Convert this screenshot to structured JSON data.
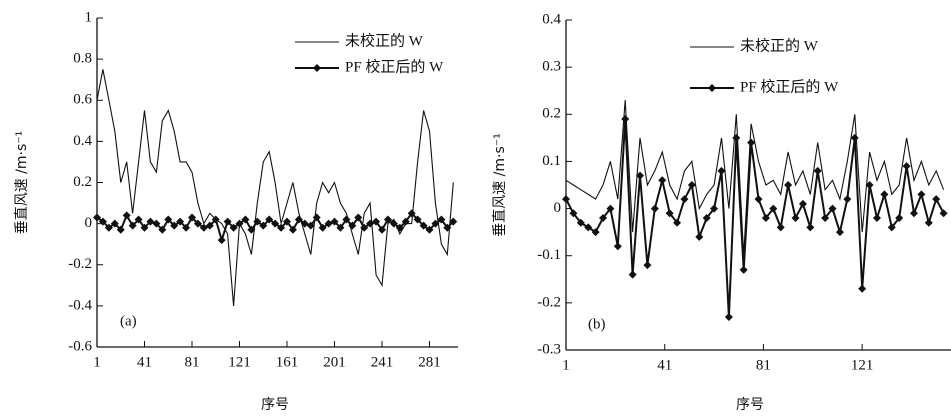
{
  "chart_data": [
    {
      "type": "line",
      "annotation": "(a)",
      "x_label": "序号",
      "y_label": "垂直风速 /m·s⁻¹",
      "legend": "upper right",
      "xlim": [
        1,
        305
      ],
      "xticks": [
        1,
        41,
        81,
        121,
        161,
        201,
        241,
        281
      ],
      "ylim": [
        -0.6,
        1
      ],
      "yticks": [
        -0.6,
        -0.4,
        -0.2,
        0,
        0.2,
        0.4,
        0.6,
        0.8,
        1
      ],
      "x": [
        1,
        6,
        11,
        16,
        21,
        26,
        31,
        36,
        41,
        46,
        51,
        56,
        61,
        66,
        71,
        76,
        81,
        86,
        91,
        96,
        101,
        106,
        111,
        116,
        121,
        126,
        131,
        136,
        141,
        146,
        151,
        156,
        161,
        166,
        171,
        176,
        181,
        186,
        191,
        196,
        201,
        206,
        211,
        216,
        221,
        226,
        231,
        236,
        241,
        246,
        251,
        256,
        261,
        266,
        271,
        276,
        281,
        286,
        291,
        296,
        301
      ],
      "series": [
        {
          "name": "未校正的 W",
          "color": "#111111",
          "marker": "none",
          "values": [
            0.6,
            0.75,
            0.6,
            0.45,
            0.2,
            0.3,
            0.05,
            0.3,
            0.55,
            0.3,
            0.25,
            0.5,
            0.55,
            0.45,
            0.3,
            0.3,
            0.25,
            0.1,
            0.0,
            0.05,
            0.02,
            0.0,
            -0.05,
            -0.4,
            0.0,
            -0.05,
            -0.15,
            0.1,
            0.3,
            0.35,
            0.2,
            0.0,
            0.1,
            0.2,
            0.05,
            -0.05,
            -0.15,
            0.1,
            0.2,
            0.15,
            0.2,
            0.1,
            0.05,
            -0.05,
            -0.15,
            0.05,
            0.1,
            -0.25,
            -0.3,
            0.0,
            0.02,
            -0.05,
            0.0,
            0.0,
            0.3,
            0.55,
            0.45,
            0.1,
            -0.1,
            -0.15,
            0.2
          ]
        },
        {
          "name": "PF 校正后的 W",
          "color": "#111111",
          "marker": "diamond",
          "values": [
            0.03,
            0.01,
            -0.02,
            0.0,
            -0.03,
            0.04,
            -0.01,
            0.02,
            -0.02,
            0.01,
            0.0,
            -0.03,
            0.02,
            -0.01,
            0.01,
            -0.02,
            0.03,
            0.0,
            -0.02,
            -0.01,
            0.02,
            -0.08,
            0.01,
            -0.02,
            0.0,
            0.02,
            -0.03,
            0.01,
            -0.01,
            0.02,
            0.0,
            -0.02,
            0.01,
            -0.03,
            0.02,
            0.0,
            -0.01,
            0.03,
            -0.02,
            0.0,
            0.01,
            -0.02,
            0.02,
            -0.01,
            0.03,
            -0.02,
            0.0,
            0.01,
            -0.03,
            0.02,
            0.0,
            -0.02,
            0.01,
            0.05,
            0.02,
            -0.01,
            -0.03,
            0.0,
            0.02,
            -0.02,
            0.01
          ]
        }
      ]
    },
    {
      "type": "line",
      "annotation": "(b)",
      "x_label": "序号",
      "y_label": "垂直风速 /m·s⁻¹",
      "legend": "upper right",
      "xlim": [
        1,
        157
      ],
      "xticks": [
        1,
        41,
        81,
        121
      ],
      "ylim": [
        -0.3,
        0.4
      ],
      "yticks": [
        -0.3,
        -0.2,
        -0.1,
        0,
        0.1,
        0.2,
        0.3,
        0.4
      ],
      "x": [
        1,
        4,
        7,
        10,
        13,
        16,
        19,
        22,
        25,
        28,
        31,
        34,
        37,
        40,
        43,
        46,
        49,
        52,
        55,
        58,
        61,
        64,
        67,
        70,
        73,
        76,
        79,
        82,
        85,
        88,
        91,
        94,
        97,
        100,
        103,
        106,
        109,
        112,
        115,
        118,
        121,
        124,
        127,
        130,
        133,
        136,
        139,
        142,
        145,
        148,
        151,
        154
      ],
      "series": [
        {
          "name": "未校正的 W",
          "color": "#111111",
          "marker": "none",
          "values": [
            0.06,
            0.05,
            0.04,
            0.03,
            0.02,
            0.05,
            0.1,
            0.02,
            0.23,
            -0.05,
            0.15,
            0.05,
            0.08,
            0.12,
            0.05,
            0.02,
            0.08,
            0.1,
            0.0,
            0.03,
            0.05,
            0.15,
            0.0,
            0.2,
            -0.1,
            0.18,
            0.1,
            0.05,
            0.06,
            0.03,
            0.12,
            0.05,
            0.08,
            0.03,
            0.14,
            0.04,
            0.06,
            0.02,
            0.1,
            0.2,
            -0.05,
            0.12,
            0.06,
            0.1,
            0.03,
            0.05,
            0.15,
            0.06,
            0.1,
            0.05,
            0.08,
            0.04
          ]
        },
        {
          "name": "PF 校正后的 W",
          "color": "#111111",
          "marker": "diamond",
          "values": [
            0.02,
            -0.01,
            -0.03,
            -0.04,
            -0.05,
            -0.02,
            0.0,
            -0.08,
            0.19,
            -0.14,
            0.07,
            -0.12,
            0.0,
            0.06,
            -0.01,
            -0.03,
            0.02,
            0.05,
            -0.06,
            -0.02,
            0.0,
            0.08,
            -0.23,
            0.15,
            -0.13,
            0.14,
            0.02,
            -0.02,
            0.0,
            -0.04,
            0.05,
            -0.02,
            0.01,
            -0.04,
            0.08,
            -0.02,
            0.0,
            -0.05,
            0.02,
            0.15,
            -0.17,
            0.05,
            -0.02,
            0.03,
            -0.04,
            -0.02,
            0.09,
            -0.01,
            0.03,
            -0.03,
            0.02,
            -0.01
          ]
        }
      ]
    }
  ]
}
